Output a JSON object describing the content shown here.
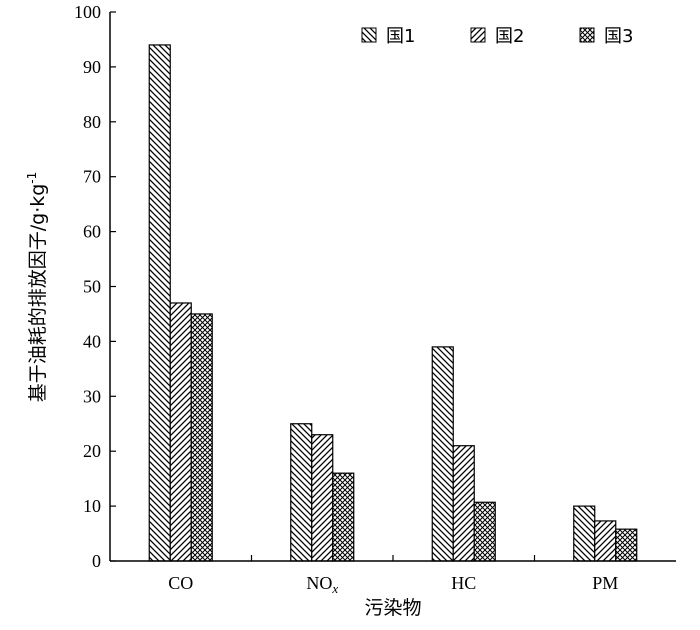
{
  "chart_data": {
    "type": "bar",
    "categories": [
      "CO",
      "NOx",
      "HC",
      "PM"
    ],
    "category_labels": [
      {
        "main": "CO",
        "sub": ""
      },
      {
        "main": "NO",
        "sub": "x"
      },
      {
        "main": "HC",
        "sub": ""
      },
      {
        "main": "PM",
        "sub": ""
      }
    ],
    "series": [
      {
        "name": "国1",
        "values": [
          94,
          25,
          39,
          10
        ],
        "pattern": "diag-back"
      },
      {
        "name": "国2",
        "values": [
          47,
          23,
          21,
          7.3
        ],
        "pattern": "diag-fwd"
      },
      {
        "name": "国3",
        "values": [
          45,
          16,
          10.7,
          5.8
        ],
        "pattern": "cross"
      }
    ],
    "xlabel": "污染物",
    "ylabel_main": "基于油耗的排放因子/g·kg",
    "ylabel_sup": "-1",
    "ylim": [
      0,
      100
    ],
    "yticks": [
      0,
      10,
      20,
      30,
      40,
      50,
      60,
      70,
      80,
      90,
      100
    ],
    "grid": false,
    "legend_position": "top-right",
    "colors": {
      "bar_stroke": "#000000",
      "background": "#ffffff"
    }
  }
}
